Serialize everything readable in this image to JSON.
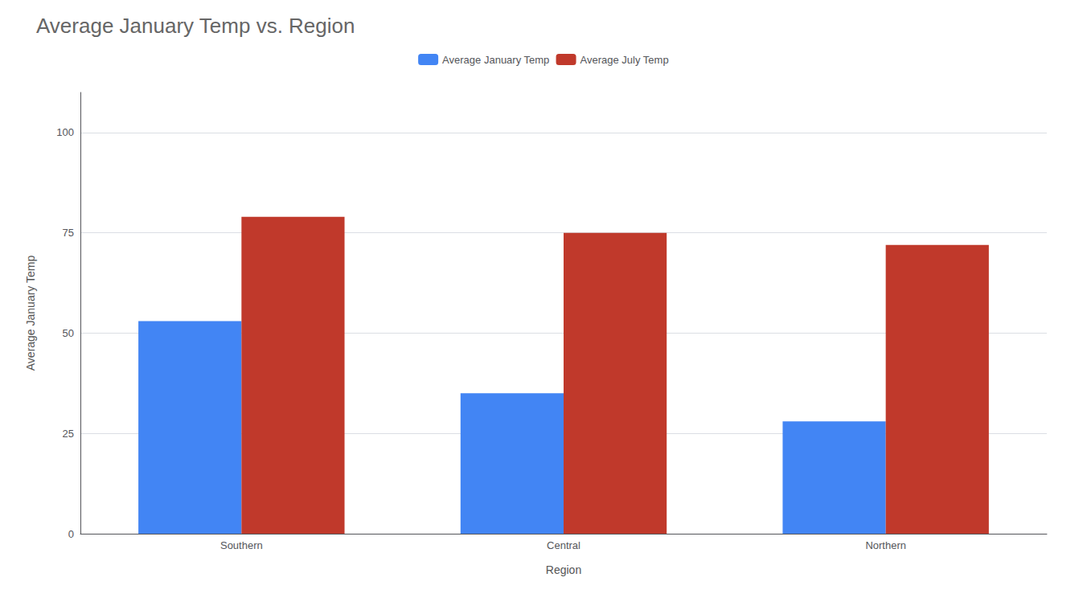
{
  "chart_data": {
    "type": "bar",
    "title": "Average January Temp vs. Region",
    "xlabel": "Region",
    "ylabel": "Average January Temp",
    "categories": [
      "Southern",
      "Central",
      "Northern"
    ],
    "series": [
      {
        "name": "Average January Temp",
        "color": "#4285F4",
        "values": [
          53,
          35,
          28
        ]
      },
      {
        "name": "Average July Temp",
        "color": "#C0392B",
        "values": [
          79,
          75,
          72
        ]
      }
    ],
    "ylim": [
      0,
      110
    ],
    "yticks": [
      0,
      25,
      50,
      75,
      100
    ],
    "grid": true,
    "legend": "top"
  }
}
